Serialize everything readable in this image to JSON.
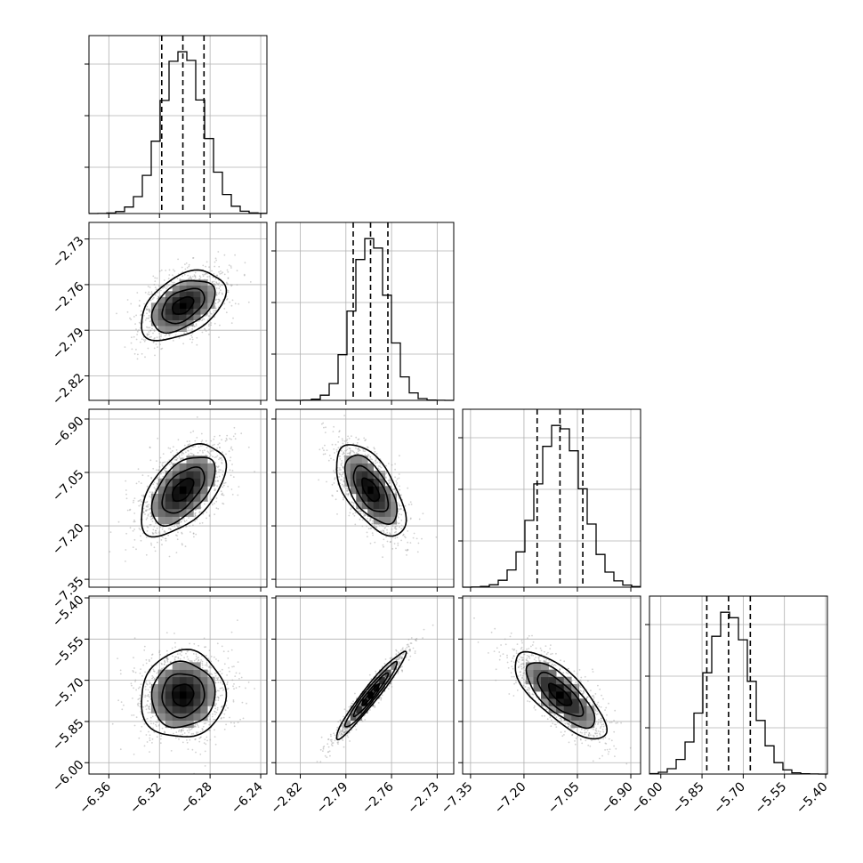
{
  "chart_data": {
    "type": "corner",
    "parameters": [
      {
        "index": 0,
        "median": -6.3015,
        "sigma": 0.0167,
        "range": [
          -6.3757,
          -6.2351
        ],
        "ticks": [
          "−6.36",
          "−6.32",
          "−6.28",
          "−6.24"
        ],
        "tick_values": [
          -6.36,
          -6.32,
          -6.28,
          -6.24
        ],
        "quantiles": [
          -6.3182,
          -6.3015,
          -6.2848
        ]
      },
      {
        "index": 1,
        "median": -2.7738,
        "sigma": 0.0114,
        "range": [
          -2.8361,
          -2.7191
        ],
        "ticks": [
          "−2.82",
          "−2.79",
          "−2.76",
          "−2.73"
        ],
        "tick_values": [
          -2.82,
          -2.79,
          -2.76,
          -2.73
        ],
        "quantiles": [
          -2.7852,
          -2.7738,
          -2.7624
        ]
      },
      {
        "index": 2,
        "median": -7.0989,
        "sigma": 0.0641,
        "range": [
          -7.3722,
          -6.8726
        ],
        "ticks": [
          "−7.35",
          "−7.20",
          "−7.05",
          "−6.90"
        ],
        "tick_values": [
          -7.35,
          -7.2,
          -7.05,
          -6.9
        ],
        "quantiles": [
          -7.163,
          -7.0989,
          -7.0348
        ]
      },
      {
        "index": 3,
        "median": -5.7534,
        "sigma": 0.0792,
        "range": [
          -6.0413,
          -5.3935
        ],
        "ticks": [
          "−6.00",
          "−5.85",
          "−5.70",
          "−5.55",
          "−5.40"
        ],
        "tick_values": [
          -6.0,
          -5.85,
          -5.7,
          -5.55,
          -5.4
        ],
        "quantiles": [
          -5.8326,
          -5.7534,
          -5.6742
        ]
      }
    ],
    "correlations": [
      {
        "pair": [
          1,
          0
        ],
        "rho": 0.45
      },
      {
        "pair": [
          2,
          0
        ],
        "rho": 0.55
      },
      {
        "pair": [
          2,
          1
        ],
        "rho": -0.6
      },
      {
        "pair": [
          3,
          0
        ],
        "rho": 0.05
      },
      {
        "pair": [
          3,
          1
        ],
        "rho": 0.96
      },
      {
        "pair": [
          3,
          2
        ],
        "rho": -0.75
      }
    ],
    "contour_levels_sigma": [
      0.5,
      1.0,
      1.5,
      2.0
    ],
    "histogram_bins": 20,
    "grid": true,
    "colors": {
      "line": "#000000",
      "grid": "#b0b0b0",
      "points": "#9a9a9a"
    }
  }
}
